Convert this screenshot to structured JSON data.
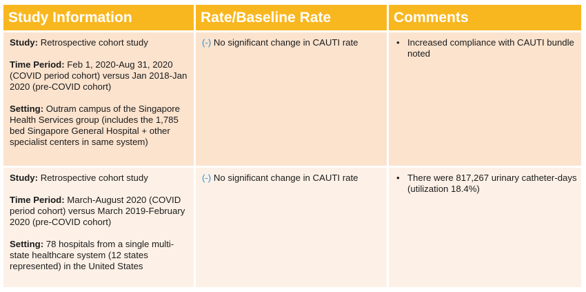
{
  "headers": [
    "Study Information",
    "Rate/Baseline Rate",
    "Comments"
  ],
  "rows": [
    {
      "study_label": "Study:",
      "study_value": " Retrospective cohort study",
      "time_label": "Time Period:",
      "time_value": " Feb 1, 2020-Aug 31, 2020 (COVID period cohort) versus Jan 2018-Jan 2020 (pre-COVID cohort)",
      "setting_label": "Setting:",
      "setting_value": " Outram campus of the Singapore Health Services group (includes the 1,785 bed Singapore General Hospital + other specialist centers in same system)",
      "rate_sign": "(-)",
      "rate_text": " No significant change in CAUTI rate",
      "comment_bullet": "•",
      "comment": "Increased compliance with CAUTI bundle noted"
    },
    {
      "study_label": "Study:",
      "study_value": " Retrospective cohort study",
      "time_label": "Time Period:",
      "time_value": " March-August 2020 (COVID period cohort) versus March 2019-February 2020 (pre-COVID cohort)",
      "setting_label": "Setting:",
      "setting_value": " 78 hospitals from a single multi-state healthcare system (12 states represented) in the United States",
      "rate_sign": "(-)",
      "rate_text": " No significant change in CAUTI rate",
      "comment_bullet": "•",
      "comment": "There were 817,267 urinary catheter-days (utilization 18.4%)"
    }
  ]
}
